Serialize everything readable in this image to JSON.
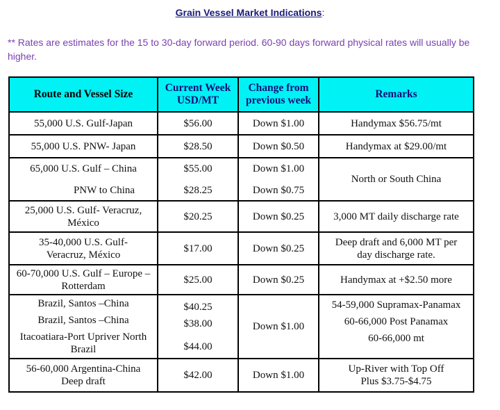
{
  "title": "Grain Vessel Market Indications",
  "title_suffix": ":",
  "note": "** Rates are estimates for the 15 to 30-day forward period. 60-90 days forward physical rates will usually be higher.",
  "colors": {
    "header_bg": "#00f2f5",
    "note": "#7b3fb0",
    "title": "#1a1a7a"
  },
  "table": {
    "headers": [
      "Route and Vessel Size",
      "Current Week USD/MT",
      "Change from previous week",
      "Remarks"
    ],
    "rows": [
      {
        "route": "55,000 U.S. Gulf-Japan",
        "rate": "$56.00",
        "change": "Down $1.00",
        "remarks": "Handymax  $56.75/mt"
      },
      {
        "route": "55,000 U.S. PNW- Japan",
        "rate": "$28.50",
        "change": "Down $0.50",
        "remarks": "Handymax at $29.00/mt"
      },
      {
        "route": [
          "65,000 U.S. Gulf – China",
          "PNW to China"
        ],
        "rate": [
          "$55.00",
          "$28.25"
        ],
        "change": [
          "Down $1.00",
          "Down $0.75"
        ],
        "remarks": "North or South China"
      },
      {
        "route": "25,000 U.S. Gulf- Veracruz, México",
        "rate": "$20.25",
        "change": "Down $0.25",
        "remarks": "3,000 MT daily discharge rate"
      },
      {
        "route": "35-40,000 U.S. Gulf- Veracruz, México",
        "rate": "$17.00",
        "change": "Down $0.25",
        "remarks": "Deep draft and 6,000 MT per day discharge rate."
      },
      {
        "route": "60-70,000 U.S. Gulf – Europe – Rotterdam",
        "rate": "$25.00",
        "change": "Down $0.25",
        "remarks": "Handymax at +$2.50 more"
      },
      {
        "route": [
          "Brazil, Santos –China",
          "Brazil, Santos –China",
          "Itacoatiara-Port Upriver North Brazil"
        ],
        "rate": [
          "$40.25",
          "$38.00",
          "$44.00"
        ],
        "change": "Down $1.00",
        "remarks": [
          "54-59,000 Supramax-Panamax",
          "60-66,000  Post Panamax",
          "60-66,000 mt"
        ]
      },
      {
        "route": "56-60,000 Argentina-China Deep draft",
        "rate": "$42.00",
        "change": "Down $1.00",
        "remarks": "Up-River with Top Off Plus $3.75-$4.75"
      }
    ]
  }
}
